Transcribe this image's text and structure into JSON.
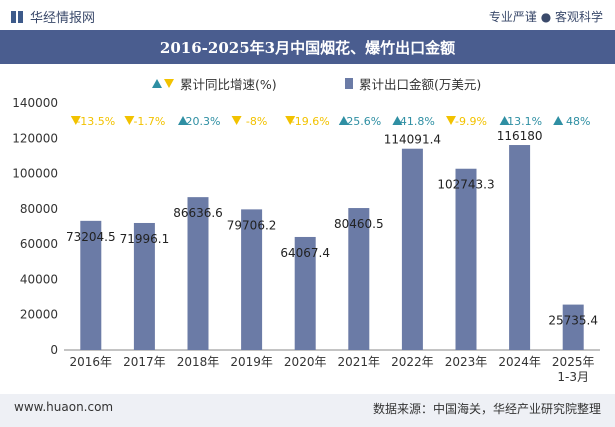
{
  "header": {
    "brand": "华经情报网",
    "slogan": "专业严谨 ● 客观科学"
  },
  "footer": {
    "website": "www.huaon.com",
    "source": "数据来源：中国海关，华经产业研究院整理"
  },
  "colors": {
    "bar": "#6b7ba6",
    "up": "#2f8fa3",
    "down": "#f2c200",
    "title_bg": "#4a5d8f"
  },
  "chart_data": {
    "type": "bar",
    "title": "2016-2025年3月中国烟花、爆竹出口金额",
    "categories": [
      "2016年",
      "2017年",
      "2018年",
      "2019年",
      "2020年",
      "2021年",
      "2022年",
      "2023年",
      "2024年",
      "2025年\n1-3月"
    ],
    "ylim": [
      0,
      140000
    ],
    "yticks": [
      0,
      20000,
      40000,
      60000,
      80000,
      100000,
      120000,
      140000
    ],
    "legend": [
      "累计同比增速(%)",
      "累计出口金额(万美元)"
    ],
    "series": [
      {
        "name": "累计出口金额(万美元)",
        "values": [
          73204.5,
          71996.1,
          86636.6,
          79706.2,
          64067.4,
          80460.5,
          114091.4,
          102743.3,
          116180,
          25735.4
        ],
        "labels": [
          "73204.5",
          "71996.1",
          "86636.6",
          "79706.2",
          "64067.4",
          "80460.5",
          "114091.4",
          "102743.3",
          "116180",
          "25735.4"
        ]
      },
      {
        "name": "累计同比增速(%)",
        "values": [
          -13.5,
          -1.7,
          20.3,
          -8,
          -19.6,
          25.6,
          41.8,
          -9.9,
          13.1,
          48
        ],
        "labels": [
          "-13.5%",
          "-1.7%",
          "20.3%",
          "-8%",
          "-19.6%",
          "25.6%",
          "41.8%",
          "-9.9%",
          "13.1%",
          "48%"
        ]
      }
    ]
  }
}
